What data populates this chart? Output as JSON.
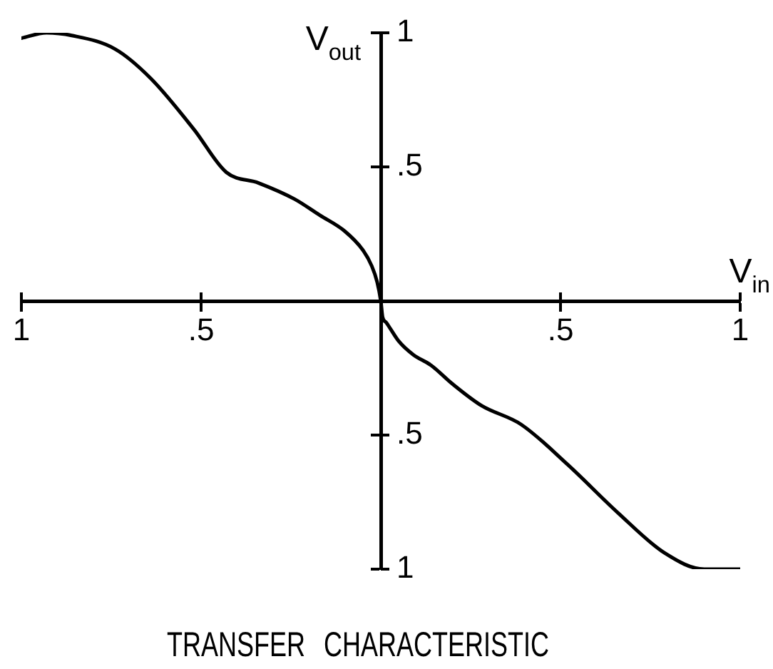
{
  "chart_data": {
    "type": "line",
    "title": "TRANSFER CHARACTERISTIC",
    "xlabel": "V$_{in}$",
    "ylabel": "V$_{out}$",
    "x": [
      -1,
      -0.93,
      -0.86,
      -0.74,
      -0.64,
      -0.52,
      -0.43,
      -0.34,
      -0.24,
      -0.17,
      -0.1,
      -0.05,
      -0.025,
      -0.01,
      0,
      0.005,
      0.015,
      0.025,
      0.05,
      0.09,
      0.14,
      0.2,
      0.28,
      0.39,
      0.52,
      0.66,
      0.79,
      0.9,
      1
    ],
    "values": [
      0.98,
      1,
      0.99,
      0.94,
      0.83,
      0.64,
      0.48,
      0.44,
      0.38,
      0.32,
      0.26,
      0.19,
      0.13,
      0.07,
      0,
      -0.06,
      -0.08,
      -0.1,
      -0.15,
      -0.2,
      -0.24,
      -0.31,
      -0.39,
      -0.46,
      -0.61,
      -0.79,
      -0.94,
      -1,
      -1
    ],
    "color": "#000000",
    "marker": "none",
    "line_style": "solid",
    "xlim": [
      -1,
      1
    ],
    "ylim": [
      -1,
      1
    ],
    "xticks": [
      {
        "value": -1,
        "label": "1"
      },
      {
        "value": -0.5,
        "label": ".5"
      },
      {
        "value": 0.5,
        "label": ".5"
      },
      {
        "value": 1,
        "label": "1"
      }
    ],
    "yticks": [
      {
        "value": -1,
        "label": "1"
      },
      {
        "value": -0.5,
        "label": ".5"
      },
      {
        "value": 0.5,
        "label": ".5"
      },
      {
        "value": 1,
        "label": "1"
      }
    ],
    "grid": false,
    "legend": false
  }
}
